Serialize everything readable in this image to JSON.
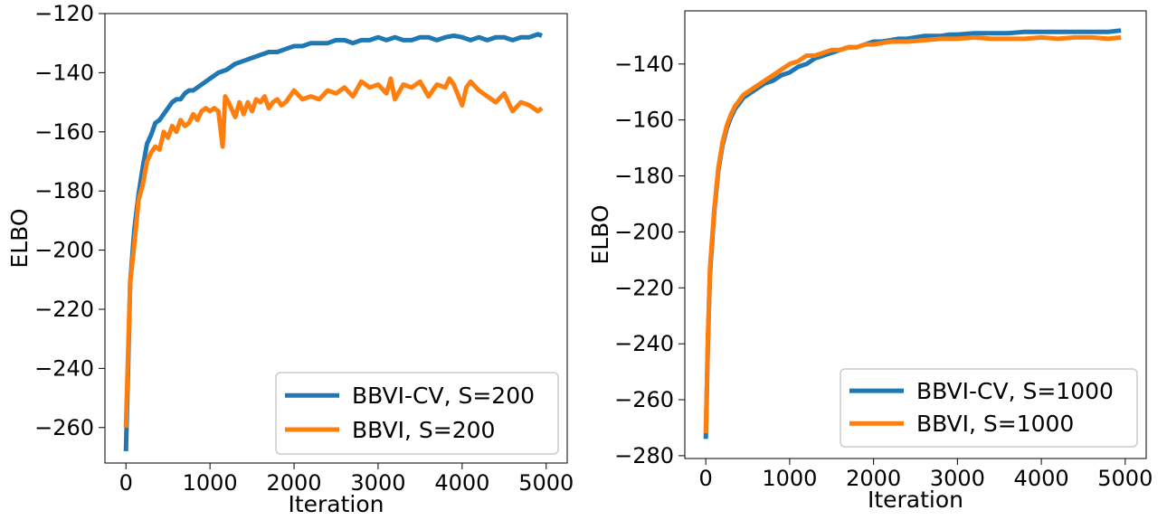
{
  "chart_data": [
    {
      "type": "line",
      "title": "",
      "xlabel": "Iteration",
      "ylabel": "ELBO",
      "xlim": [
        -250,
        5250
      ],
      "ylim": [
        -272,
        -120
      ],
      "xticks": [
        0,
        1000,
        2000,
        3000,
        4000,
        5000
      ],
      "yticks": [
        -260,
        -240,
        -220,
        -200,
        -180,
        -160,
        -140,
        -120
      ],
      "grid": false,
      "legend_position": "lower-right",
      "series": [
        {
          "name": "BBVI-CV, S=200",
          "color": "#1f77b4",
          "x": [
            0,
            25,
            50,
            100,
            150,
            200,
            250,
            300,
            350,
            400,
            450,
            500,
            550,
            600,
            650,
            700,
            750,
            800,
            900,
            1000,
            1100,
            1200,
            1300,
            1400,
            1500,
            1600,
            1700,
            1800,
            1900,
            2000,
            2100,
            2200,
            2300,
            2400,
            2500,
            2600,
            2700,
            2800,
            2900,
            3000,
            3100,
            3200,
            3300,
            3400,
            3500,
            3600,
            3700,
            3800,
            3900,
            4000,
            4100,
            4200,
            4300,
            4400,
            4500,
            4600,
            4700,
            4800,
            4900,
            4950
          ],
          "y": [
            -268,
            -240,
            -211,
            -193,
            -181,
            -172,
            -164,
            -161,
            -157,
            -156,
            -154,
            -152,
            -150,
            -149,
            -149,
            -147,
            -146,
            -146,
            -144,
            -142,
            -140,
            -139,
            -137,
            -136,
            -135,
            -134,
            -133,
            -133,
            -132,
            -131,
            -131,
            -130,
            -130,
            -130,
            -129,
            -129,
            -130,
            -129,
            -129,
            -128,
            -129,
            -128,
            -129,
            -129,
            -128,
            -128,
            -129,
            -128,
            -127.5,
            -128,
            -129,
            -128,
            -129,
            -128,
            -128,
            -129,
            -128,
            -128,
            -127,
            -127.5
          ]
        },
        {
          "name": "BBVI, S=200",
          "color": "#ff7f0e",
          "x": [
            0,
            25,
            50,
            100,
            150,
            200,
            250,
            300,
            350,
            400,
            450,
            500,
            550,
            600,
            650,
            700,
            750,
            800,
            850,
            900,
            950,
            1000,
            1050,
            1100,
            1150,
            1180,
            1220,
            1300,
            1350,
            1400,
            1450,
            1500,
            1550,
            1600,
            1650,
            1700,
            1750,
            1800,
            1850,
            1900,
            1950,
            2000,
            2100,
            2200,
            2300,
            2400,
            2500,
            2600,
            2700,
            2800,
            2900,
            3000,
            3100,
            3150,
            3200,
            3300,
            3400,
            3500,
            3600,
            3700,
            3800,
            3850,
            3900,
            4000,
            4050,
            4100,
            4200,
            4300,
            4400,
            4500,
            4600,
            4700,
            4800,
            4900,
            4950
          ],
          "y": [
            -260,
            -235,
            -211,
            -198,
            -183,
            -178,
            -170,
            -167,
            -165,
            -166,
            -160,
            -162,
            -158,
            -160,
            -156,
            -158,
            -157,
            -154,
            -156,
            -153,
            -152,
            -153,
            -152,
            -153,
            -165,
            -148,
            -150,
            -155,
            -150,
            -154,
            -150,
            -153,
            -149,
            -150,
            -148,
            -152,
            -150,
            -149,
            -151,
            -150,
            -148,
            -146,
            -149,
            -148,
            -149,
            -146,
            -147,
            -145,
            -148,
            -143,
            -145,
            -144,
            -147,
            -142,
            -149,
            -144,
            -145,
            -143,
            -148,
            -144,
            -145,
            -142,
            -144,
            -151,
            -145,
            -143,
            -146,
            -148,
            -150,
            -147,
            -153,
            -150,
            -151,
            -153,
            -152
          ]
        }
      ]
    },
    {
      "type": "line",
      "title": "",
      "xlabel": "Iteration",
      "ylabel": "ELBO",
      "xlim": [
        -250,
        5250
      ],
      "ylim": [
        -281,
        -121
      ],
      "xticks": [
        0,
        1000,
        2000,
        3000,
        4000,
        5000
      ],
      "yticks": [
        -280,
        -260,
        -240,
        -220,
        -200,
        -180,
        -160,
        -140
      ],
      "grid": false,
      "legend_position": "lower-right",
      "series": [
        {
          "name": "BBVI-CV, S=1000",
          "color": "#1f77b4",
          "x": [
            0,
            25,
            50,
            100,
            150,
            200,
            250,
            300,
            350,
            400,
            450,
            500,
            600,
            700,
            800,
            900,
            1000,
            1100,
            1200,
            1300,
            1400,
            1500,
            1600,
            1700,
            1800,
            1900,
            2000,
            2100,
            2200,
            2300,
            2400,
            2500,
            2600,
            2700,
            2800,
            2900,
            3000,
            3200,
            3400,
            3600,
            3800,
            4000,
            4200,
            4400,
            4600,
            4800,
            4950
          ],
          "y": [
            -274,
            -240,
            -215,
            -193,
            -178,
            -169,
            -163,
            -159,
            -156,
            -154,
            -152,
            -151,
            -149,
            -147,
            -146,
            -144,
            -143,
            -141,
            -140,
            -138,
            -137,
            -136,
            -135,
            -134,
            -134,
            -133,
            -132,
            -132,
            -131.5,
            -131,
            -131,
            -130.5,
            -130,
            -130,
            -130,
            -129.5,
            -129.5,
            -129,
            -129,
            -129,
            -128.5,
            -128.5,
            -128.5,
            -128.5,
            -128.5,
            -128.5,
            -128
          ]
        },
        {
          "name": "BBVI, S=1000",
          "color": "#ff7f0e",
          "x": [
            0,
            25,
            50,
            100,
            150,
            200,
            250,
            300,
            350,
            400,
            450,
            500,
            600,
            700,
            800,
            900,
            1000,
            1100,
            1200,
            1300,
            1400,
            1500,
            1600,
            1700,
            1800,
            1900,
            2000,
            2200,
            2400,
            2600,
            2800,
            3000,
            3200,
            3400,
            3600,
            3800,
            4000,
            4200,
            4400,
            4600,
            4800,
            4950
          ],
          "y": [
            -272,
            -238,
            -213,
            -192,
            -177,
            -168,
            -162,
            -158,
            -155,
            -153,
            -151,
            -150,
            -148,
            -146,
            -144,
            -142,
            -140,
            -139,
            -137,
            -137,
            -136,
            -135,
            -135,
            -134,
            -134,
            -133,
            -133,
            -132,
            -132,
            -131.5,
            -131,
            -131,
            -130.5,
            -131,
            -131,
            -131,
            -130.5,
            -131,
            -130.5,
            -130.5,
            -131,
            -130.5
          ]
        }
      ]
    }
  ]
}
